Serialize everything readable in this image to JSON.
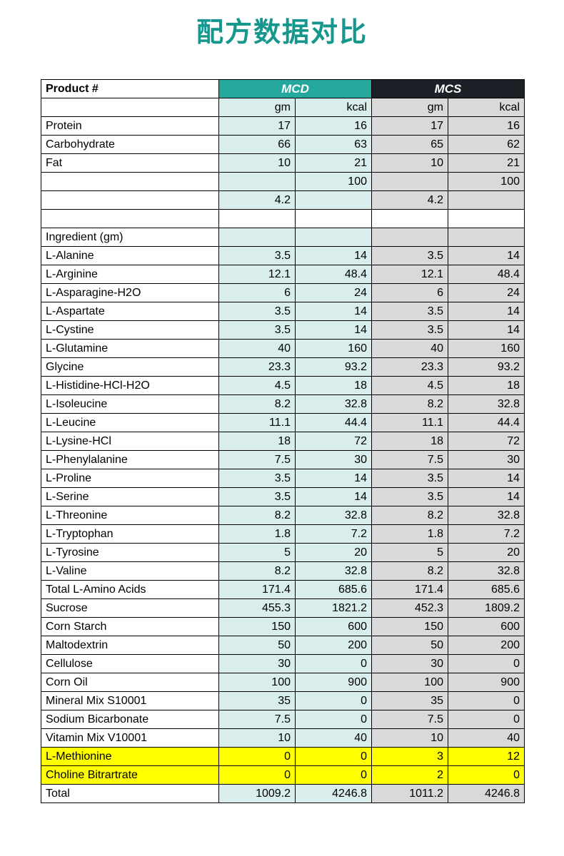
{
  "page": {
    "title": "配方数据对比"
  },
  "colors": {
    "title": "#16978d",
    "mcd_header_bg": "#24a79d",
    "mcs_header_bg": "#1b2127",
    "mcd_cell_bg": "#d8edec",
    "mcs_cell_bg": "#d9d9d9",
    "highlight_bg": "#ffff00",
    "header_text": "#ffffff",
    "border": "#000000"
  },
  "chart_data": {
    "type": "table",
    "title": "配方数据对比",
    "product_header": "Product #",
    "groups": [
      {
        "label": "MCD"
      },
      {
        "label": "MCS"
      }
    ],
    "unit_headers": [
      "gm",
      "kcal",
      "gm",
      "kcal"
    ],
    "rows": [
      {
        "label": "Protein",
        "values": [
          "17",
          "16",
          "17",
          "16"
        ]
      },
      {
        "label": "Carbohydrate",
        "values": [
          "66",
          "63",
          "65",
          "62"
        ]
      },
      {
        "label": "Fat",
        "values": [
          "10",
          "21",
          "10",
          "21"
        ]
      },
      {
        "label": "",
        "values": [
          "",
          "100",
          "",
          "100"
        ]
      },
      {
        "label": "",
        "values": [
          "4.2",
          "",
          "4.2",
          ""
        ]
      },
      {
        "label": "",
        "values": [
          "",
          "",
          "",
          ""
        ],
        "blank": true
      },
      {
        "label": "Ingredient (gm)",
        "values": [
          "",
          "",
          "",
          ""
        ]
      },
      {
        "label": "L-Alanine",
        "values": [
          "3.5",
          "14",
          "3.5",
          "14"
        ]
      },
      {
        "label": "L-Arginine",
        "values": [
          "12.1",
          "48.4",
          "12.1",
          "48.4"
        ]
      },
      {
        "label": "L-Asparagine-H2O",
        "values": [
          "6",
          "24",
          "6",
          "24"
        ]
      },
      {
        "label": "L-Aspartate",
        "values": [
          "3.5",
          "14",
          "3.5",
          "14"
        ]
      },
      {
        "label": "L-Cystine",
        "values": [
          "3.5",
          "14",
          "3.5",
          "14"
        ]
      },
      {
        "label": "L-Glutamine",
        "values": [
          "40",
          "160",
          "40",
          "160"
        ]
      },
      {
        "label": "Glycine",
        "values": [
          "23.3",
          "93.2",
          "23.3",
          "93.2"
        ]
      },
      {
        "label": "L-Histidine-HCl-H2O",
        "values": [
          "4.5",
          "18",
          "4.5",
          "18"
        ]
      },
      {
        "label": "L-Isoleucine",
        "values": [
          "8.2",
          "32.8",
          "8.2",
          "32.8"
        ]
      },
      {
        "label": "L-Leucine",
        "values": [
          "11.1",
          "44.4",
          "11.1",
          "44.4"
        ]
      },
      {
        "label": "L-Lysine-HCl",
        "values": [
          "18",
          "72",
          "18",
          "72"
        ]
      },
      {
        "label": "L-Phenylalanine",
        "values": [
          "7.5",
          "30",
          "7.5",
          "30"
        ]
      },
      {
        "label": "L-Proline",
        "values": [
          "3.5",
          "14",
          "3.5",
          "14"
        ]
      },
      {
        "label": "L-Serine",
        "values": [
          "3.5",
          "14",
          "3.5",
          "14"
        ]
      },
      {
        "label": "L-Threonine",
        "values": [
          "8.2",
          "32.8",
          "8.2",
          "32.8"
        ]
      },
      {
        "label": "L-Tryptophan",
        "values": [
          "1.8",
          "7.2",
          "1.8",
          "7.2"
        ]
      },
      {
        "label": "L-Tyrosine",
        "values": [
          "5",
          "20",
          "5",
          "20"
        ]
      },
      {
        "label": "L-Valine",
        "values": [
          "8.2",
          "32.8",
          "8.2",
          "32.8"
        ]
      },
      {
        "label": "Total L-Amino Acids",
        "values": [
          "171.4",
          "685.6",
          "171.4",
          "685.6"
        ]
      },
      {
        "label": "Sucrose",
        "values": [
          "455.3",
          "1821.2",
          "452.3",
          "1809.2"
        ]
      },
      {
        "label": "Corn Starch",
        "values": [
          "150",
          "600",
          "150",
          "600"
        ]
      },
      {
        "label": "Maltodextrin",
        "values": [
          "50",
          "200",
          "50",
          "200"
        ]
      },
      {
        "label": "Cellulose",
        "values": [
          "30",
          "0",
          "30",
          "0"
        ]
      },
      {
        "label": "Corn Oil",
        "values": [
          "100",
          "900",
          "100",
          "900"
        ]
      },
      {
        "label": "Mineral Mix S10001",
        "values": [
          "35",
          "0",
          "35",
          "0"
        ]
      },
      {
        "label": "Sodium Bicarbonate",
        "values": [
          "7.5",
          "0",
          "7.5",
          "0"
        ]
      },
      {
        "label": "Vitamin Mix V10001",
        "values": [
          "10",
          "40",
          "10",
          "40"
        ]
      },
      {
        "label": "L-Methionine",
        "values": [
          "0",
          "0",
          "3",
          "12"
        ],
        "highlight": true
      },
      {
        "label": "Choline Bitrartrate",
        "values": [
          "0",
          "0",
          "2",
          "0"
        ],
        "highlight": true
      },
      {
        "label": "Total",
        "values": [
          "1009.2",
          "4246.8",
          "1011.2",
          "4246.8"
        ]
      }
    ]
  }
}
